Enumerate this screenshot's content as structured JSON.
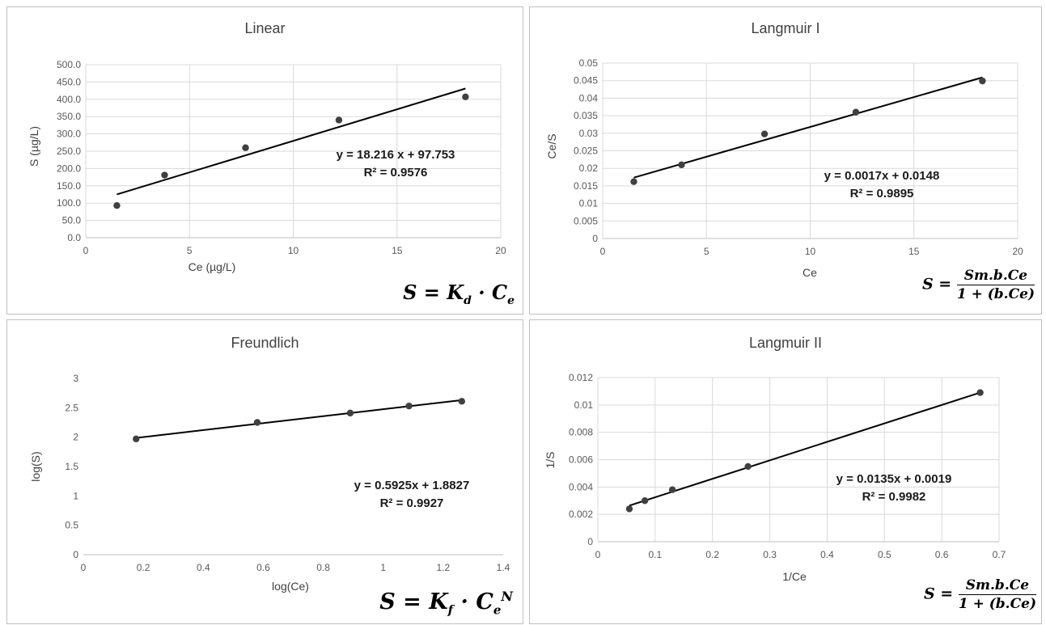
{
  "chart_data": [
    {
      "id": "p1",
      "type": "scatter",
      "title": "Linear",
      "xlabel": "Ce (µg/L)",
      "ylabel": "S (µg/L)",
      "xlim": [
        0,
        20
      ],
      "ylim": [
        0,
        500
      ],
      "xticks": [
        0,
        5,
        10,
        15,
        20
      ],
      "yticks": [
        0,
        50,
        100,
        150,
        200,
        250,
        300,
        350,
        400,
        450,
        500
      ],
      "tick_decimals_x": 0,
      "tick_decimals_y": 1,
      "grid": true,
      "x": [
        1.5,
        3.8,
        7.7,
        12.2,
        18.3
      ],
      "y": [
        93,
        181,
        260,
        340,
        407
      ],
      "trendline": {
        "slope": 18.216,
        "intercept": 97.753,
        "x_from": 1.5,
        "x_to": 18.3
      },
      "equation": "y = 18.216 x + 97.753",
      "r2": "R² = 0.9576",
      "formula": {
        "lhs": "S",
        "rhs": "K_d · C_e"
      }
    },
    {
      "id": "p2",
      "type": "scatter",
      "title": "Langmuir I",
      "xlabel": "Ce",
      "ylabel": "Ce/S",
      "xlim": [
        0,
        20
      ],
      "ylim": [
        0,
        0.05
      ],
      "xticks": [
        0,
        5,
        10,
        15,
        20
      ],
      "yticks": [
        0,
        0.005,
        0.01,
        0.015,
        0.02,
        0.025,
        0.03,
        0.035,
        0.04,
        0.045,
        0.05
      ],
      "tick_decimals_x": 0,
      "tick_decimals_y": -1,
      "grid": true,
      "x": [
        1.5,
        3.8,
        7.8,
        12.2,
        18.3
      ],
      "y": [
        0.0162,
        0.021,
        0.0298,
        0.036,
        0.0449
      ],
      "trendline": {
        "slope": 0.0017,
        "intercept": 0.0148,
        "x_from": 1.5,
        "x_to": 18.3
      },
      "equation": "y = 0.0017x + 0.0148",
      "r2": "R² = 0.9895",
      "formula": {
        "lhs": "S",
        "num": "Sm.b.Ce",
        "den": "1 + (b.Ce)"
      }
    },
    {
      "id": "p3",
      "type": "scatter",
      "title": "Freundlich",
      "xlabel": "log(Ce)",
      "ylabel": "log(S)",
      "xlim": [
        0,
        1.4
      ],
      "ylim": [
        0,
        3
      ],
      "xticks": [
        0,
        0.2,
        0.4,
        0.6,
        0.8,
        1,
        1.2,
        1.4
      ],
      "yticks": [
        0,
        0.5,
        1,
        1.5,
        2,
        2.5,
        3
      ],
      "tick_decimals_x": -1,
      "tick_decimals_y": -1,
      "grid": false,
      "x": [
        0.176,
        0.58,
        0.89,
        1.086,
        1.262
      ],
      "y": [
        1.97,
        2.25,
        2.41,
        2.53,
        2.61
      ],
      "trendline": {
        "slope": 0.5925,
        "intercept": 1.8827,
        "x_from": 0.176,
        "x_to": 1.262
      },
      "equation": "y = 0.5925x + 1.8827",
      "r2": "R² = 0.9927",
      "formula": {
        "lhs": "S",
        "rhs": "K_f · C_e^N"
      }
    },
    {
      "id": "p4",
      "type": "scatter",
      "title": "Langmuir II",
      "xlabel": "1/Ce",
      "ylabel": "1/S",
      "xlim": [
        0,
        0.7
      ],
      "ylim": [
        0,
        0.012
      ],
      "xticks": [
        0,
        0.1,
        0.2,
        0.3,
        0.4,
        0.5,
        0.6,
        0.7
      ],
      "yticks": [
        0,
        0.002,
        0.004,
        0.006,
        0.008,
        0.01,
        0.012
      ],
      "tick_decimals_x": -1,
      "tick_decimals_y": -1,
      "grid": true,
      "x": [
        0.055,
        0.082,
        0.13,
        0.262,
        0.667
      ],
      "y": [
        0.0024,
        0.003,
        0.0038,
        0.0055,
        0.0109
      ],
      "trendline": {
        "slope": 0.0135,
        "intercept": 0.0019,
        "x_from": 0.055,
        "x_to": 0.667
      },
      "equation": "y = 0.0135x + 0.0019",
      "r2": "R² = 0.9982",
      "formula": {
        "lhs": "S",
        "num": "Sm.b.Ce",
        "den": "1 + (b.Ce)"
      }
    }
  ],
  "colors": {
    "point": "#404040",
    "trendline": "#000000",
    "grid": "#d9d9d9",
    "frame": "#bfbfbf"
  }
}
